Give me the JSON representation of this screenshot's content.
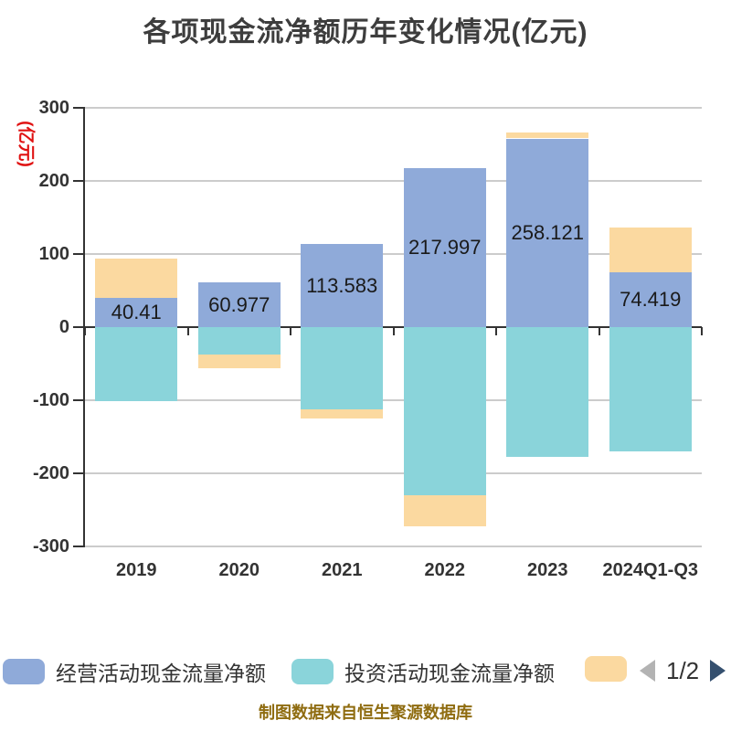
{
  "title": "各项现金流净额历年变化情况(亿元)",
  "y_axis_name": "(亿元)",
  "footer": "制图数据来自恒生聚源数据库",
  "colors": {
    "operating_blue": "#8FAAD9",
    "investing_teal": "#8AD4DA",
    "financing_orange": "#FBD9A0",
    "gridline": "#cccccc",
    "axis": "#333333",
    "tick_text": "#333333",
    "value_text": "#1a1a1a",
    "y_name_red": "#e01212",
    "footer_gold": "#8f6c10",
    "page_prev_arrow": "#b3b3b3",
    "page_next_arrow": "#35506F"
  },
  "chart_data": {
    "type": "bar",
    "stacked": true,
    "title": "各项现金流净额历年变化情况(亿元)",
    "ylabel": "(亿元)",
    "categories": [
      "2019",
      "2020",
      "2021",
      "2022",
      "2023",
      "2024Q1-Q3"
    ],
    "series": [
      {
        "name": "经营活动现金流量净额",
        "color": "#8FAAD9",
        "show_labels": true,
        "values": [
          40.41,
          60.977,
          113.583,
          217.997,
          258.121,
          74.419
        ]
      },
      {
        "name": "投资活动现金流量净额",
        "color": "#8AD4DA",
        "show_labels": false,
        "values": [
          -101,
          -38,
          -113,
          -230,
          -178,
          -170
        ]
      },
      {
        "name": "",
        "color": "#FBD9A0",
        "show_labels": false,
        "values": [
          53,
          -18,
          -12.5,
          -42.5,
          8,
          62
        ]
      }
    ],
    "data_labels": [
      "40.41",
      "60.977",
      "113.583",
      "217.997",
      "258.121",
      "74.419"
    ],
    "y_ticks": [
      "300",
      "200",
      "100",
      "0",
      "-100",
      "-200",
      "-300"
    ],
    "ylim": [
      -300,
      300
    ],
    "grid": true,
    "legend_position": "bottom"
  },
  "legend": {
    "items": [
      {
        "label": "经营活动现金流量净额",
        "color": "#8FAAD9"
      },
      {
        "label": "投资活动现金流量净额",
        "color": "#8AD4DA"
      },
      {
        "label": "",
        "color": "#FBD9A0"
      }
    ],
    "pagination": {
      "page": "1/2"
    }
  }
}
